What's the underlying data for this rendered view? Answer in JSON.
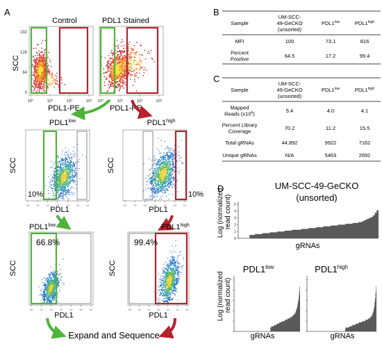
{
  "panel_letters": {
    "a": "A",
    "b": "B",
    "c": "C",
    "d": "D"
  },
  "panel_a": {
    "row1": {
      "control_title": "Control",
      "stained_title": "PDL1 Stained",
      "y_axis": "SCC",
      "x_axis": "PDL1-PE",
      "y_ticks": [
        "192",
        "128",
        "64",
        "0"
      ],
      "x_ticks": [
        "10°",
        "10¹",
        "10²",
        "10³"
      ]
    },
    "row2": {
      "low_title": "PDL1",
      "low_sup": "low",
      "high_title": "PDL1",
      "high_sup": "high",
      "y_axis": "SCC",
      "x_axis": "PDL1",
      "low_pct": "10%",
      "high_pct": "10%"
    },
    "row3": {
      "low_title": "PDL1",
      "low_sup": "low",
      "high_title": "PDL1",
      "high_sup": "high",
      "y_axis": "SCC",
      "x_axis": "PDL1",
      "low_pct": "66.8%",
      "high_pct": "99.4%"
    },
    "footer": "Expand and Sequence",
    "colors": {
      "green": "#4fb23a",
      "red": "#b5212c"
    }
  },
  "panel_b": {
    "headers": [
      "Sample",
      "UM-SCC-\n49-GeCKO\n(unsorted)",
      "PDL1|low",
      "PDL1|high"
    ],
    "rows": [
      [
        "MFI",
        "100",
        "73.1",
        "816"
      ],
      [
        "Percent\nPositive",
        "64.5",
        "17.2",
        "99.4"
      ]
    ]
  },
  "panel_c": {
    "headers": [
      "Sample",
      "UM-SCC-\n49-GeCKO\n(unsorted)",
      "PDL1|low",
      "PDL1|high"
    ],
    "rows": [
      [
        "Mapped\nReads (x10^6)",
        "5.4",
        "4.0",
        "4.1"
      ],
      [
        "Percent Library\nCoverage",
        "70.2",
        "11.2",
        "15.5"
      ],
      [
        "Total gRNAs",
        "44,892",
        "9922",
        "7162"
      ],
      [
        "Unique gRNAs",
        "N/A",
        "5463",
        "2692"
      ]
    ]
  },
  "panel_d": {
    "main_title_line1": "UM-SCC-49-GeCKO",
    "main_title_line2": "(unsorted)",
    "y_label_line1": "Log (normalized",
    "y_label_line2": "read count)",
    "x_label": "gRNAs",
    "y_ticks": [
      "0",
      "1",
      "2",
      "3",
      "4",
      "5"
    ],
    "small_low_title": "PDL1",
    "small_low_sup": "low",
    "small_high_title": "PDL1",
    "small_high_sup": "high",
    "color": "#595959"
  }
}
